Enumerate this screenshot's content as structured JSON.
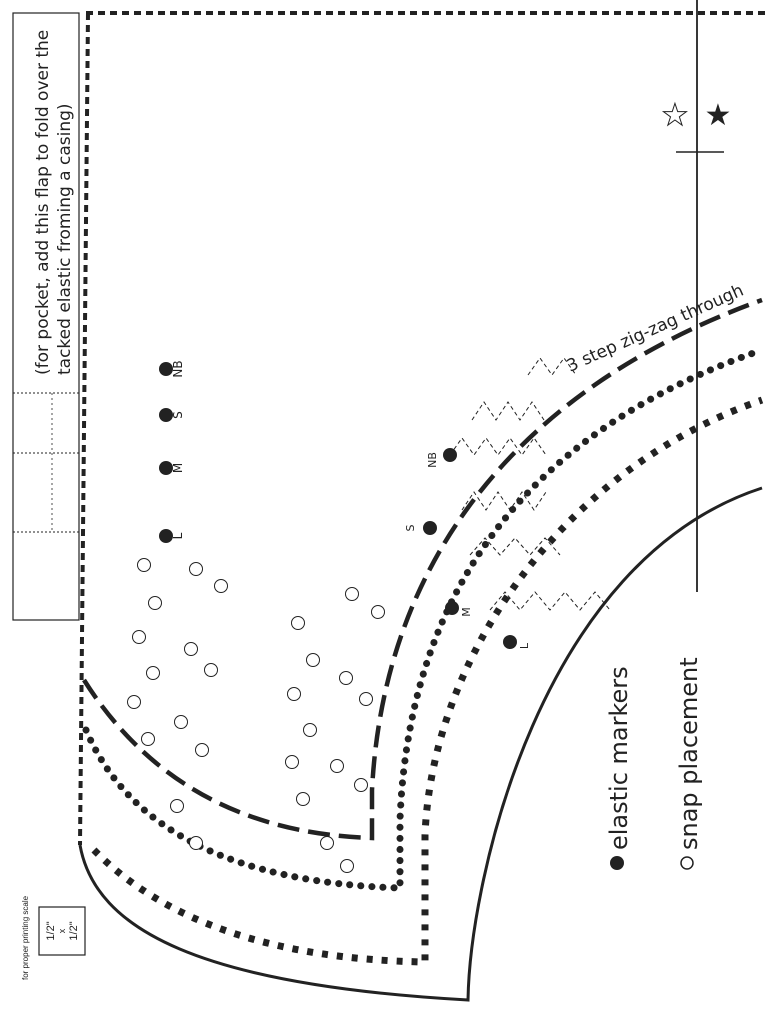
{
  "pocket_note": {
    "line1": "(for pocket, add this flap to fold over the",
    "line2": "tacked elastic froming a casing)"
  },
  "stitch_label": "3 step zig-zag through",
  "legend": {
    "elastic_label": "elastic markers",
    "snap_label": "snap placement"
  },
  "scale_note": {
    "caption": "for proper printing scale",
    "box_top": "1/2\"",
    "box_x": "x",
    "box_bottom": "1/2\""
  },
  "elastic_markers": [
    "NB",
    "S",
    "M",
    "L"
  ],
  "edge_elastic_markers": [
    "NB",
    "S",
    "M",
    "L"
  ],
  "snap_marks": [
    "NB",
    "S",
    "M",
    "L"
  ],
  "colors": {
    "ink": "#222222",
    "paper": "#ffffff"
  }
}
